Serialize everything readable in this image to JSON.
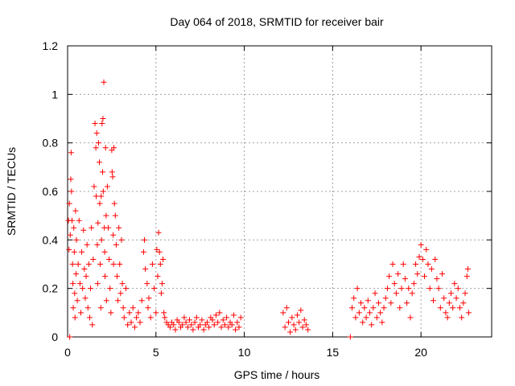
{
  "chart_data": {
    "type": "scatter",
    "title": "Day 064 of 2018, SRMTID for receiver bair",
    "xlabel": "GPS time / hours",
    "ylabel": "SRMTID / TECUs",
    "xlim": [
      0,
      24
    ],
    "ylim": [
      0,
      1.2
    ],
    "xticks": [
      0,
      5,
      10,
      15,
      20
    ],
    "xtick_labels": [
      "0",
      "5",
      "10",
      "15",
      "20"
    ],
    "yticks": [
      0,
      0.2,
      0.4,
      0.6,
      0.8,
      1,
      1.2
    ],
    "ytick_labels": [
      "0",
      "0.2",
      "0.4",
      "0.6",
      "0.8",
      "1",
      "1.2"
    ],
    "grid": true,
    "marker": "+",
    "color": "#ff0000",
    "series": [
      {
        "name": "SRMTID",
        "points": [
          [
            0.05,
            0.48
          ],
          [
            0.08,
            0.36
          ],
          [
            0.1,
            0.55
          ],
          [
            0.12,
            0.0
          ],
          [
            0.15,
            0.42
          ],
          [
            0.18,
            0.65
          ],
          [
            0.2,
            0.76
          ],
          [
            0.22,
            0.6
          ],
          [
            0.25,
            0.48
          ],
          [
            0.28,
            0.3
          ],
          [
            0.3,
            0.22
          ],
          [
            0.32,
            0.12
          ],
          [
            0.35,
            0.45
          ],
          [
            0.38,
            0.35
          ],
          [
            0.4,
            0.18
          ],
          [
            0.42,
            0.08
          ],
          [
            0.45,
            0.52
          ],
          [
            0.48,
            0.26
          ],
          [
            0.5,
            0.4
          ],
          [
            0.55,
            0.15
          ],
          [
            0.6,
            0.3
          ],
          [
            0.65,
            0.48
          ],
          [
            0.7,
            0.22
          ],
          [
            0.75,
            0.1
          ],
          [
            0.8,
            0.35
          ],
          [
            0.85,
            0.2
          ],
          [
            0.9,
            0.44
          ],
          [
            0.95,
            0.28
          ],
          [
            1.0,
            0.16
          ],
          [
            1.05,
            0.25
          ],
          [
            1.1,
            0.38
          ],
          [
            1.15,
            0.12
          ],
          [
            1.2,
            0.3
          ],
          [
            1.25,
            0.08
          ],
          [
            1.3,
            0.2
          ],
          [
            1.35,
            0.45
          ],
          [
            1.4,
            0.05
          ],
          [
            1.45,
            0.32
          ],
          [
            1.5,
            0.62
          ],
          [
            1.55,
            0.88
          ],
          [
            1.6,
            0.78
          ],
          [
            1.62,
            0.58
          ],
          [
            1.65,
            0.84
          ],
          [
            1.68,
            0.38
          ],
          [
            1.7,
            0.22
          ],
          [
            1.72,
            0.47
          ],
          [
            1.75,
            0.8
          ],
          [
            1.8,
            0.72
          ],
          [
            1.82,
            0.55
          ],
          [
            1.85,
            0.3
          ],
          [
            1.88,
            0.12
          ],
          [
            1.9,
            0.58
          ],
          [
            1.92,
            0.4
          ],
          [
            1.95,
            0.88
          ],
          [
            1.98,
            0.68
          ],
          [
            2.0,
            0.9
          ],
          [
            2.02,
            0.6
          ],
          [
            2.05,
            1.05
          ],
          [
            2.08,
            0.45
          ],
          [
            2.1,
            0.35
          ],
          [
            2.12,
            0.25
          ],
          [
            2.15,
            0.78
          ],
          [
            2.18,
            0.5
          ],
          [
            2.2,
            0.15
          ],
          [
            2.25,
            0.62
          ],
          [
            2.3,
            0.45
          ],
          [
            2.35,
            0.32
          ],
          [
            2.4,
            0.2
          ],
          [
            2.45,
            0.1
          ],
          [
            2.5,
            0.77
          ],
          [
            2.52,
            0.68
          ],
          [
            2.55,
            0.66
          ],
          [
            2.58,
            0.42
          ],
          [
            2.6,
            0.3
          ],
          [
            2.62,
            0.78
          ],
          [
            2.65,
            0.55
          ],
          [
            2.7,
            0.5
          ],
          [
            2.75,
            0.38
          ],
          [
            2.8,
            0.25
          ],
          [
            2.85,
            0.15
          ],
          [
            2.9,
            0.45
          ],
          [
            2.95,
            0.3
          ],
          [
            3.0,
            0.18
          ],
          [
            3.05,
            0.4
          ],
          [
            3.1,
            0.22
          ],
          [
            3.15,
            0.12
          ],
          [
            3.2,
            0.08
          ],
          [
            3.3,
            0.2
          ],
          [
            3.4,
            0.05
          ],
          [
            3.5,
            0.1
          ],
          [
            3.6,
            0.06
          ],
          [
            3.7,
            0.12
          ],
          [
            3.8,
            0.04
          ],
          [
            3.9,
            0.08
          ],
          [
            4.0,
            0.1
          ],
          [
            4.1,
            0.06
          ],
          [
            4.2,
            0.15
          ],
          [
            4.3,
            0.35
          ],
          [
            4.35,
            0.4
          ],
          [
            4.4,
            0.28
          ],
          [
            4.5,
            0.22
          ],
          [
            4.55,
            0.12
          ],
          [
            4.6,
            0.16
          ],
          [
            4.7,
            0.08
          ],
          [
            4.8,
            0.3
          ],
          [
            4.9,
            0.2
          ],
          [
            5.0,
            0.1
          ],
          [
            5.05,
            0.36
          ],
          [
            5.1,
            0.25
          ],
          [
            5.15,
            0.43
          ],
          [
            5.2,
            0.35
          ],
          [
            5.25,
            0.3
          ],
          [
            5.3,
            0.18
          ],
          [
            5.35,
            0.22
          ],
          [
            5.4,
            0.32
          ],
          [
            5.45,
            0.1
          ],
          [
            5.5,
            0.08
          ],
          [
            5.6,
            0.06
          ],
          [
            5.7,
            0.05
          ],
          [
            5.8,
            0.04
          ],
          [
            5.9,
            0.06
          ],
          [
            6.0,
            0.05
          ],
          [
            6.1,
            0.03
          ],
          [
            6.2,
            0.07
          ],
          [
            6.3,
            0.06
          ],
          [
            6.4,
            0.04
          ],
          [
            6.5,
            0.05
          ],
          [
            6.6,
            0.08
          ],
          [
            6.7,
            0.06
          ],
          [
            6.8,
            0.04
          ],
          [
            6.9,
            0.07
          ],
          [
            7.0,
            0.05
          ],
          [
            7.1,
            0.03
          ],
          [
            7.2,
            0.06
          ],
          [
            7.3,
            0.08
          ],
          [
            7.4,
            0.04
          ],
          [
            7.5,
            0.05
          ],
          [
            7.6,
            0.07
          ],
          [
            7.7,
            0.03
          ],
          [
            7.8,
            0.05
          ],
          [
            7.9,
            0.06
          ],
          [
            8.0,
            0.04
          ],
          [
            8.1,
            0.08
          ],
          [
            8.2,
            0.07
          ],
          [
            8.3,
            0.05
          ],
          [
            8.4,
            0.09
          ],
          [
            8.5,
            0.06
          ],
          [
            8.6,
            0.1
          ],
          [
            8.7,
            0.04
          ],
          [
            8.8,
            0.07
          ],
          [
            8.9,
            0.05
          ],
          [
            9.0,
            0.08
          ],
          [
            9.1,
            0.04
          ],
          [
            9.2,
            0.06
          ],
          [
            9.3,
            0.05
          ],
          [
            9.4,
            0.09
          ],
          [
            9.5,
            0.03
          ],
          [
            9.6,
            0.06
          ],
          [
            9.7,
            0.04
          ],
          [
            9.8,
            0.08
          ],
          [
            12.2,
            0.1
          ],
          [
            12.3,
            0.04
          ],
          [
            12.4,
            0.12
          ],
          [
            12.5,
            0.06
          ],
          [
            12.6,
            0.02
          ],
          [
            12.7,
            0.08
          ],
          [
            12.8,
            0.05
          ],
          [
            12.9,
            0.03
          ],
          [
            13.0,
            0.09
          ],
          [
            13.1,
            0.06
          ],
          [
            13.2,
            0.11
          ],
          [
            13.3,
            0.04
          ],
          [
            13.4,
            0.07
          ],
          [
            13.5,
            0.05
          ],
          [
            13.6,
            0.03
          ],
          [
            16.0,
            0.0
          ],
          [
            16.1,
            0.12
          ],
          [
            16.2,
            0.16
          ],
          [
            16.3,
            0.08
          ],
          [
            16.4,
            0.2
          ],
          [
            16.5,
            0.1
          ],
          [
            16.6,
            0.14
          ],
          [
            16.7,
            0.06
          ],
          [
            16.8,
            0.12
          ],
          [
            16.9,
            0.08
          ],
          [
            17.0,
            0.15
          ],
          [
            17.1,
            0.1
          ],
          [
            17.2,
            0.05
          ],
          [
            17.3,
            0.12
          ],
          [
            17.4,
            0.18
          ],
          [
            17.5,
            0.08
          ],
          [
            17.6,
            0.14
          ],
          [
            17.7,
            0.1
          ],
          [
            17.8,
            0.06
          ],
          [
            17.9,
            0.12
          ],
          [
            18.0,
            0.16
          ],
          [
            18.1,
            0.2
          ],
          [
            18.2,
            0.25
          ],
          [
            18.3,
            0.14
          ],
          [
            18.4,
            0.3
          ],
          [
            18.5,
            0.22
          ],
          [
            18.6,
            0.18
          ],
          [
            18.7,
            0.26
          ],
          [
            18.8,
            0.12
          ],
          [
            18.9,
            0.2
          ],
          [
            19.0,
            0.3
          ],
          [
            19.1,
            0.24
          ],
          [
            19.2,
            0.14
          ],
          [
            19.3,
            0.2
          ],
          [
            19.4,
            0.08
          ],
          [
            19.5,
            0.18
          ],
          [
            19.6,
            0.22
          ],
          [
            19.7,
            0.3
          ],
          [
            19.8,
            0.26
          ],
          [
            19.9,
            0.33
          ],
          [
            20.0,
            0.38
          ],
          [
            20.1,
            0.32
          ],
          [
            20.2,
            0.25
          ],
          [
            20.3,
            0.36
          ],
          [
            20.4,
            0.3
          ],
          [
            20.5,
            0.2
          ],
          [
            20.6,
            0.28
          ],
          [
            20.7,
            0.15
          ],
          [
            20.8,
            0.32
          ],
          [
            20.9,
            0.24
          ],
          [
            21.0,
            0.2
          ],
          [
            21.1,
            0.12
          ],
          [
            21.2,
            0.26
          ],
          [
            21.3,
            0.16
          ],
          [
            21.4,
            0.1
          ],
          [
            21.5,
            0.08
          ],
          [
            21.6,
            0.14
          ],
          [
            21.7,
            0.18
          ],
          [
            21.8,
            0.12
          ],
          [
            21.9,
            0.22
          ],
          [
            22.0,
            0.16
          ],
          [
            22.1,
            0.2
          ],
          [
            22.2,
            0.12
          ],
          [
            22.3,
            0.08
          ],
          [
            22.4,
            0.14
          ],
          [
            22.5,
            0.18
          ],
          [
            22.6,
            0.25
          ],
          [
            22.65,
            0.28
          ],
          [
            22.7,
            0.1
          ]
        ]
      }
    ]
  }
}
